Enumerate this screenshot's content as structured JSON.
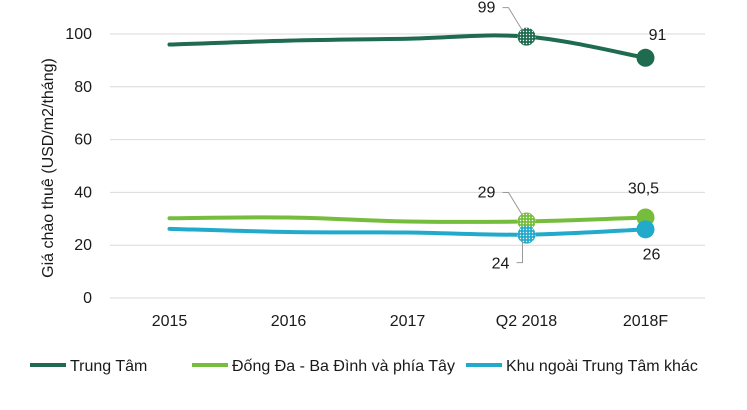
{
  "chart_data": {
    "type": "line",
    "ylabel": "Giá chào thuê (USD/m2/tháng)",
    "xlabel": "",
    "categories": [
      "2015",
      "2016",
      "2017",
      "Q2 2018",
      "2018F"
    ],
    "ylim": [
      0,
      100
    ],
    "yticks": [
      "0",
      "20",
      "40",
      "60",
      "80",
      "100"
    ],
    "grid": "horizontal",
    "legend_position": "bottom",
    "series": [
      {
        "name": "Trung Tâm",
        "color": "#1e6b4f",
        "values": [
          96,
          97.5,
          98.2,
          99,
          91
        ]
      },
      {
        "name": "Đống Đa - Ba Đình và phía Tây",
        "color": "#76bd3d",
        "values": [
          30.2,
          30.5,
          29,
          29,
          30.5
        ]
      },
      {
        "name": "Khu ngoài Trung Tâm khác",
        "color": "#22aacb",
        "values": [
          26.2,
          25,
          24.8,
          24,
          26
        ]
      }
    ],
    "annotations": [
      {
        "series": 0,
        "index": 3,
        "text": "99"
      },
      {
        "series": 0,
        "index": 4,
        "text": "91"
      },
      {
        "series": 1,
        "index": 3,
        "text": "29"
      },
      {
        "series": 1,
        "index": 4,
        "text": "30,5"
      },
      {
        "series": 2,
        "index": 3,
        "text": "24"
      },
      {
        "series": 2,
        "index": 4,
        "text": "26"
      }
    ]
  }
}
